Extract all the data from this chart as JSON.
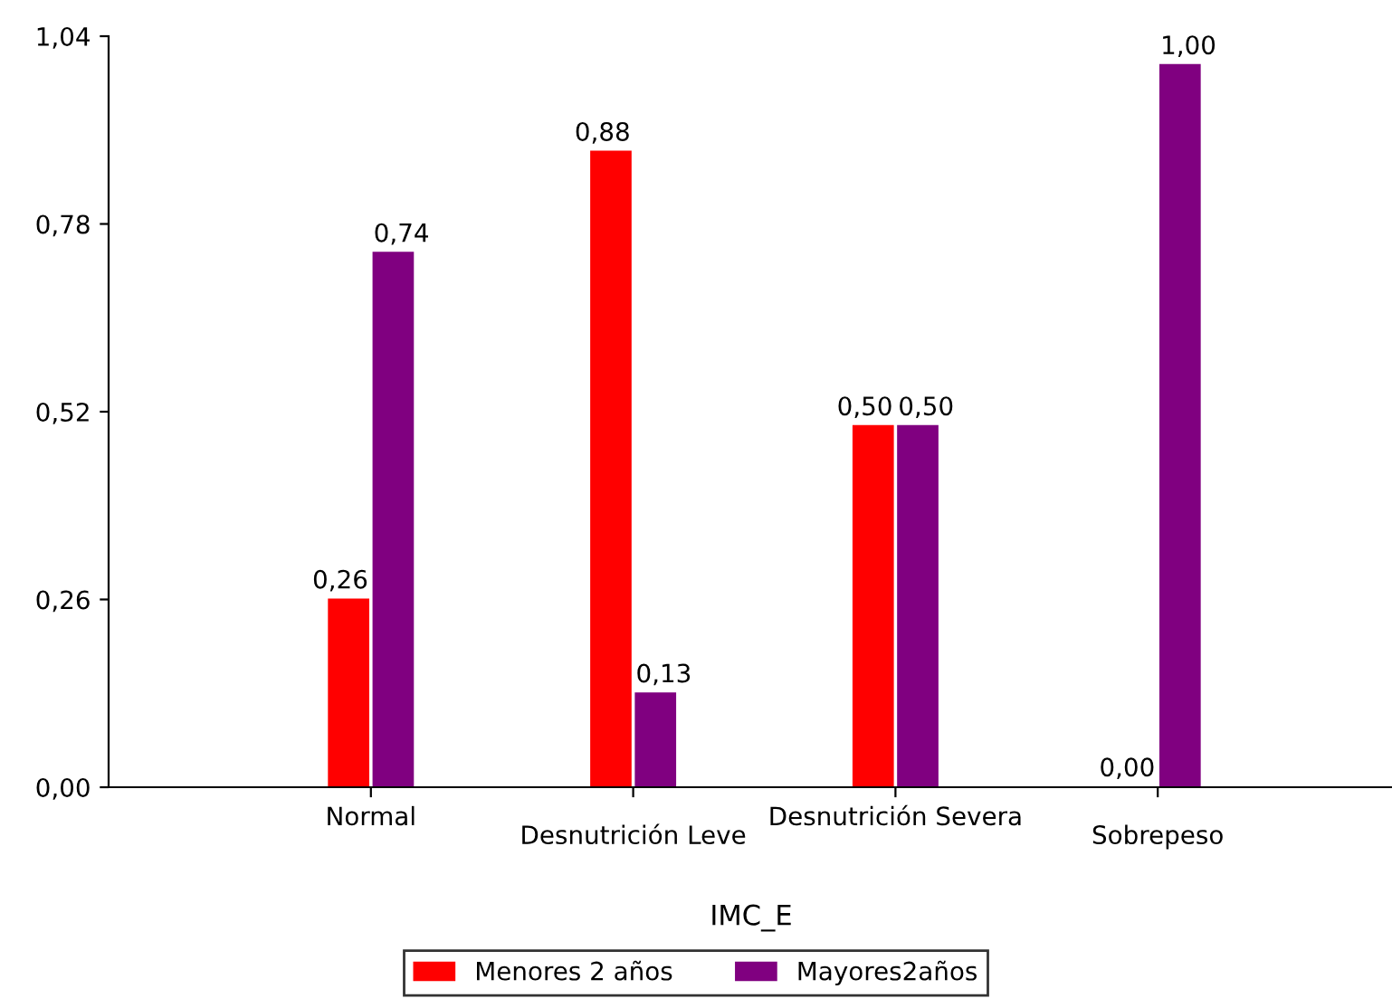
{
  "chart_data": {
    "type": "bar",
    "xlabel": "IMC_E",
    "categories": [
      "Normal",
      "Desnutrición Leve",
      "Desnutrición Severa",
      "Sobrepeso"
    ],
    "series": [
      {
        "name": "Menores 2 años",
        "color": "#ff0000",
        "values": [
          0.26,
          0.88,
          0.5,
          0.0
        ],
        "value_labels": [
          "0,26",
          "0,88",
          "0,50",
          "0,00"
        ]
      },
      {
        "name": "Mayores2años",
        "color": "#800080",
        "values": [
          0.74,
          0.13,
          0.5,
          1.0
        ],
        "value_labels": [
          "0,74",
          "0,13",
          "0,50",
          "1,00"
        ]
      }
    ],
    "ylim": [
      0,
      1.04
    ],
    "yticks": [
      {
        "value": 0,
        "label": "0,00"
      },
      {
        "value": 0.26,
        "label": "0,26"
      },
      {
        "value": 0.52,
        "label": "0,52"
      },
      {
        "value": 0.78,
        "label": "0,78"
      },
      {
        "value": 1.04,
        "label": "1,04"
      }
    ],
    "grid": false,
    "legend": "bottom"
  }
}
